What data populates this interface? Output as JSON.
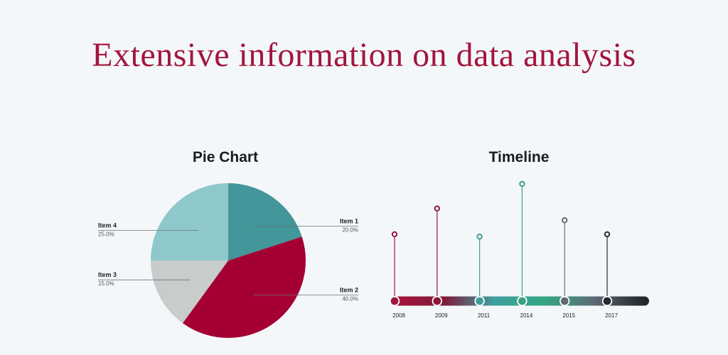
{
  "headline": "Extensive information on data analysis",
  "colors": {
    "headline": "#a3153d",
    "item1": "#43969a",
    "item2": "#a50034",
    "item3": "#c8ccca",
    "item4": "#8fc8ca",
    "timeline_bar": [
      "#a8143a",
      "#7d1b3b",
      "#3fa0a0",
      "#34a782",
      "#5d6b76",
      "#23262c"
    ]
  },
  "chart_data": [
    {
      "type": "pie",
      "title": "Pie Chart",
      "slices": [
        {
          "label": "Item 1",
          "value": 20,
          "display": "20.0%",
          "color": "#43969a",
          "label_side": "right"
        },
        {
          "label": "Item 2",
          "value": 40,
          "display": "40.0%",
          "color": "#a50034",
          "label_side": "right"
        },
        {
          "label": "Item 3",
          "value": 15,
          "display": "15.0%",
          "color": "#c8ccca",
          "label_side": "left"
        },
        {
          "label": "Item 4",
          "value": 25,
          "display": "25.0%",
          "color": "#8fc8ca",
          "label_side": "left"
        }
      ],
      "start_angle_deg": 0,
      "direction": "clockwise"
    },
    {
      "type": "timeline",
      "title": "Timeline",
      "events": [
        {
          "year": "2008",
          "relative_height": 0.57,
          "color": "#9c1740"
        },
        {
          "year": "2009",
          "relative_height": 0.79,
          "color": "#8b1838"
        },
        {
          "year": "2011",
          "relative_height": 0.55,
          "color": "#3f9c9a"
        },
        {
          "year": "2014",
          "relative_height": 1.0,
          "color": "#3ea082"
        },
        {
          "year": "2015",
          "relative_height": 0.69,
          "color": "#5f6b74"
        },
        {
          "year": "2017",
          "relative_height": 0.57,
          "color": "#26292f"
        }
      ]
    }
  ]
}
